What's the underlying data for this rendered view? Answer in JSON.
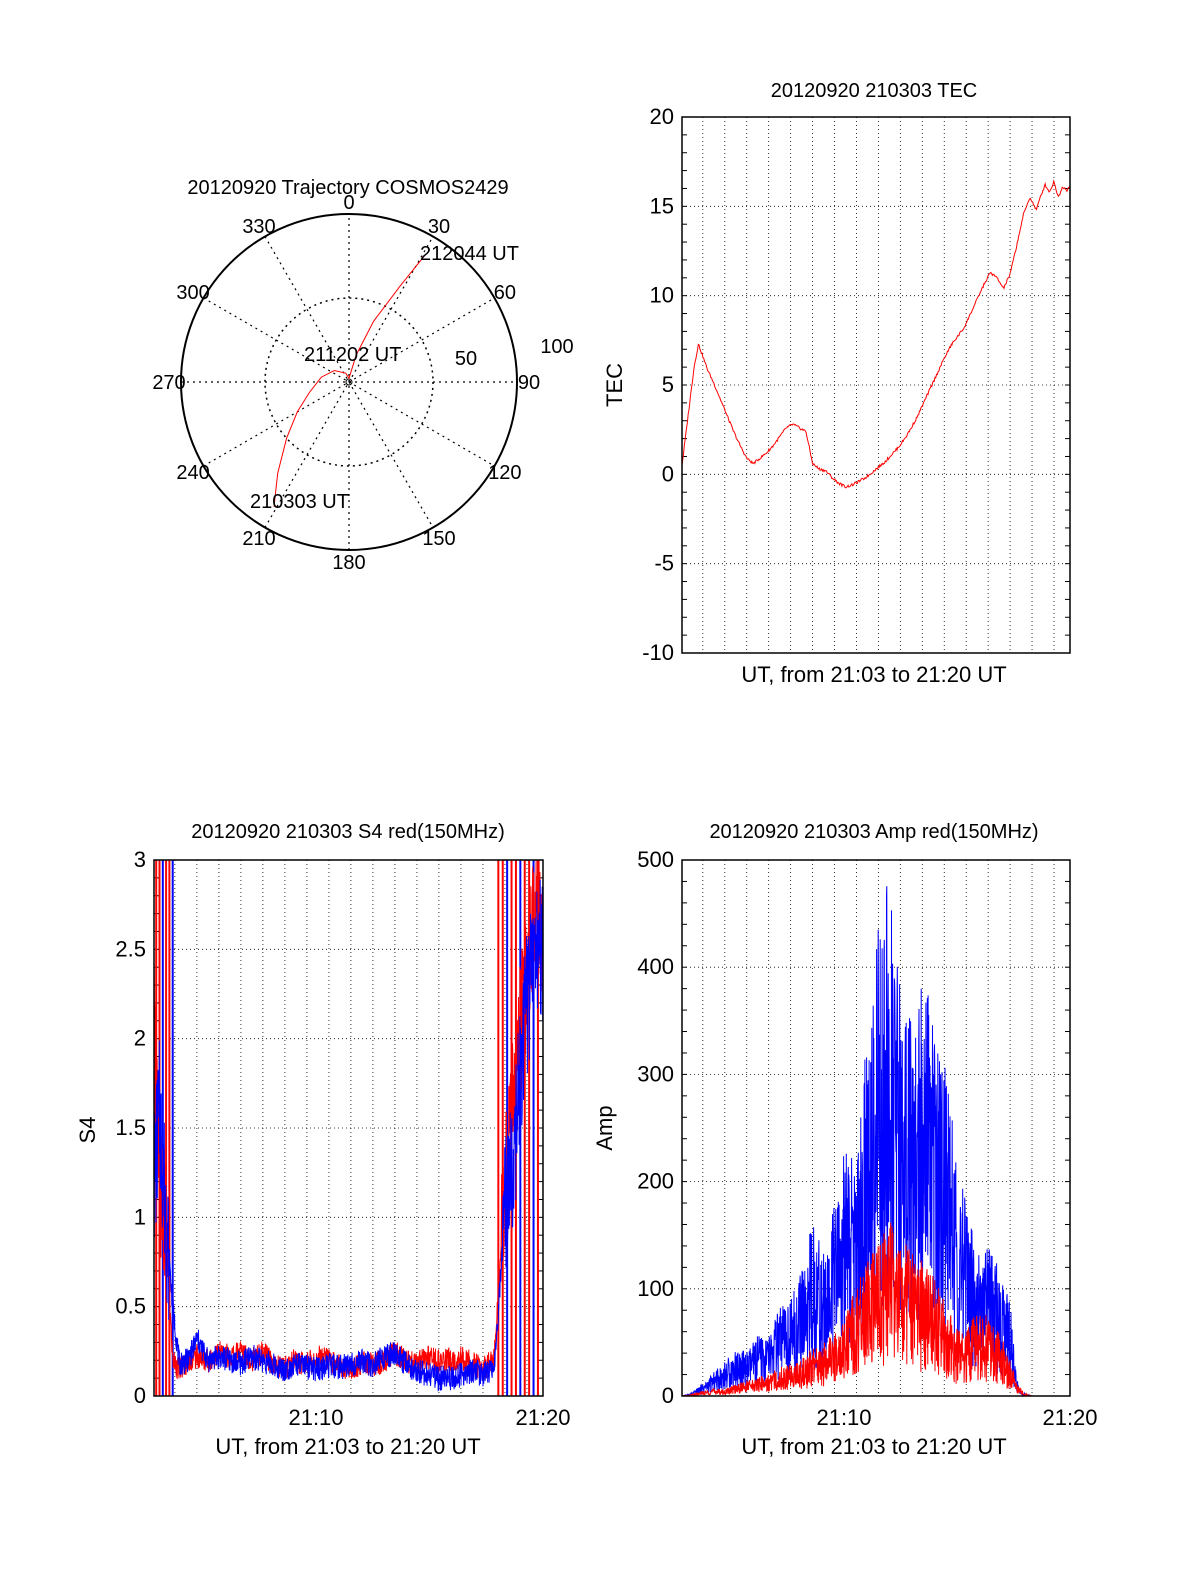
{
  "chart_data": [
    {
      "type": "polar",
      "title": "20120920 Trajectory COSMOS2429",
      "azimuth_labels": [
        "0",
        "30",
        "60",
        "90",
        "120",
        "150",
        "180",
        "210",
        "240",
        "270",
        "300",
        "330"
      ],
      "elevation_labels": [
        "50",
        "100"
      ],
      "trajectory_labels": [
        "212044 UT",
        "211202 UT",
        "210303 UT"
      ],
      "series": [
        {
          "color": "#ff0000",
          "points": [
            [
              211,
              12
            ],
            [
              218,
              28
            ],
            [
              228,
              45
            ],
            [
              240,
              58
            ],
            [
              255,
              68
            ],
            [
              280,
              75
            ],
            [
              308,
              80
            ],
            [
              340,
              85
            ],
            [
              0,
              88
            ],
            [
              15,
              75
            ],
            [
              22,
              55
            ],
            [
              28,
              32
            ],
            [
              31,
              10
            ]
          ]
        }
      ]
    },
    {
      "type": "line",
      "title": "20120920 210303 TEC",
      "xlabel": "UT, from 21:03 to 21:20 UT",
      "ylabel": "TEC",
      "xlim": [
        3.05,
        20.73
      ],
      "ylim": [
        -10,
        20
      ],
      "yticks": [
        "20",
        "15",
        "10",
        "5",
        "0",
        "-5",
        "-10"
      ],
      "grid": true,
      "series": [
        {
          "color": "#ff0000",
          "x": [
            3.05,
            3.2,
            3.4,
            3.6,
            3.8,
            4.0,
            4.2,
            4.5,
            4.8,
            5.1,
            5.4,
            5.7,
            6.0,
            6.3,
            6.6,
            6.9,
            7.2,
            7.5,
            7.8,
            8.1,
            8.4,
            8.7,
            9.0,
            9.3,
            9.6,
            9.9,
            10.2,
            10.5,
            10.8,
            11.1,
            11.4,
            11.7,
            12.0,
            12.3,
            12.6,
            12.9,
            13.2,
            13.5,
            13.8,
            14.1,
            14.4,
            14.7,
            15.0,
            15.3,
            15.6,
            15.9,
            16.2,
            16.5,
            16.8,
            17.1,
            17.4,
            17.7,
            18.0,
            18.3,
            18.6,
            18.9,
            19.2,
            19.4,
            19.6,
            19.8,
            20.0,
            20.2,
            20.4,
            20.6,
            20.73
          ],
          "y": [
            0.5,
            2.0,
            4.0,
            6.0,
            7.3,
            6.6,
            5.9,
            5.1,
            4.2,
            3.3,
            2.4,
            1.6,
            0.9,
            0.6,
            0.9,
            1.2,
            1.6,
            2.1,
            2.6,
            2.8,
            2.6,
            2.4,
            0.6,
            0.3,
            0.2,
            -0.2,
            -0.5,
            -0.7,
            -0.6,
            -0.4,
            -0.2,
            0.1,
            0.4,
            0.7,
            1.1,
            1.5,
            2.0,
            2.6,
            3.3,
            4.1,
            4.9,
            5.7,
            6.5,
            7.2,
            7.7,
            8.2,
            9.0,
            9.8,
            10.6,
            11.3,
            11.0,
            10.4,
            11.2,
            12.8,
            14.5,
            15.5,
            14.8,
            15.6,
            16.2,
            15.8,
            16.4,
            15.5,
            16.1,
            15.9,
            16.2
          ]
        }
      ]
    },
    {
      "type": "line",
      "title": "20120920 210303 S4 red(150MHz)",
      "xlabel": "UT, from 21:03 to 21:20 UT",
      "ylabel": "S4",
      "xlim": [
        3.05,
        20.73
      ],
      "ylim": [
        0,
        3
      ],
      "yticks": [
        "3",
        "2.5",
        "2",
        "1.5",
        "1",
        "0.5",
        "0"
      ],
      "xticks": [
        "21:10",
        "21:20"
      ],
      "grid": true,
      "series": [
        {
          "color": "#ff0000",
          "x": [
            3.05,
            3.3,
            3.6,
            3.9,
            4.2,
            4.6,
            5.0,
            5.5,
            6.0,
            6.5,
            7.0,
            7.5,
            8.0,
            8.5,
            9.0,
            9.5,
            10.0,
            10.5,
            11.0,
            11.5,
            12.0,
            12.5,
            13.0,
            13.5,
            14.0,
            14.5,
            15.0,
            15.5,
            16.0,
            16.5,
            17.0,
            17.5,
            18.0,
            18.5,
            19.0,
            19.5,
            20.0,
            20.5,
            20.73
          ],
          "y": [
            2.1,
            1.2,
            0.9,
            0.2,
            0.15,
            0.2,
            0.22,
            0.2,
            0.24,
            0.22,
            0.25,
            0.2,
            0.24,
            0.18,
            0.16,
            0.2,
            0.18,
            0.22,
            0.2,
            0.17,
            0.15,
            0.19,
            0.17,
            0.2,
            0.24,
            0.2,
            0.18,
            0.22,
            0.19,
            0.2,
            0.22,
            0.18,
            0.15,
            0.2,
            1.1,
            1.8,
            2.4,
            2.8,
            2.6
          ]
        },
        {
          "color": "#0000ff",
          "x": [
            3.05,
            3.3,
            3.6,
            3.9,
            4.2,
            4.6,
            5.0,
            5.5,
            6.0,
            6.5,
            7.0,
            7.5,
            8.0,
            8.5,
            9.0,
            9.5,
            10.0,
            10.5,
            11.0,
            11.5,
            12.0,
            12.5,
            13.0,
            13.5,
            14.0,
            14.5,
            15.0,
            15.5,
            16.0,
            16.5,
            17.0,
            17.5,
            18.0,
            18.5,
            19.0,
            19.5,
            20.0,
            20.5,
            20.73
          ],
          "y": [
            1.2,
            1.6,
            1.0,
            0.5,
            0.18,
            0.2,
            0.32,
            0.2,
            0.22,
            0.2,
            0.18,
            0.22,
            0.2,
            0.17,
            0.15,
            0.18,
            0.16,
            0.15,
            0.17,
            0.16,
            0.18,
            0.2,
            0.17,
            0.22,
            0.24,
            0.18,
            0.14,
            0.12,
            0.1,
            0.1,
            0.12,
            0.14,
            0.12,
            0.14,
            1.0,
            1.5,
            2.2,
            2.6,
            2.4
          ]
        }
      ]
    },
    {
      "type": "line",
      "title": "20120920 210303 Amp red(150MHz)",
      "xlabel": "UT, from 21:03 to 21:20 UT",
      "ylabel": "Amp",
      "xlim": [
        3.05,
        20.73
      ],
      "ylim": [
        0,
        500
      ],
      "yticks": [
        "500",
        "400",
        "300",
        "200",
        "100",
        "0"
      ],
      "xticks": [
        "21:10",
        "21:20"
      ],
      "grid": true,
      "series": [
        {
          "color": "#0000ff",
          "x": [
            3.05,
            3.5,
            4.0,
            4.5,
            5.0,
            5.5,
            6.0,
            6.5,
            7.0,
            7.5,
            8.0,
            8.5,
            9.0,
            9.5,
            10.0,
            10.5,
            11.0,
            11.5,
            12.0,
            12.5,
            13.0,
            13.5,
            14.0,
            14.5,
            15.0,
            15.5,
            16.0,
            16.5,
            17.0,
            17.5,
            18.0,
            18.3,
            18.6,
            19.0,
            20.0,
            20.73
          ],
          "y": [
            0,
            2,
            8,
            15,
            22,
            30,
            28,
            38,
            40,
            55,
            60,
            80,
            110,
            90,
            120,
            160,
            150,
            230,
            300,
            330,
            260,
            250,
            270,
            240,
            210,
            160,
            120,
            90,
            95,
            80,
            60,
            10,
            2,
            0,
            0,
            0
          ]
        },
        {
          "color": "#ff0000",
          "x": [
            3.05,
            3.5,
            4.0,
            4.5,
            5.0,
            5.5,
            6.0,
            6.5,
            7.0,
            7.5,
            8.0,
            8.5,
            9.0,
            9.5,
            10.0,
            10.5,
            11.0,
            11.5,
            12.0,
            12.5,
            13.0,
            13.5,
            14.0,
            14.5,
            15.0,
            15.5,
            16.0,
            16.5,
            17.0,
            17.5,
            18.0,
            18.3,
            18.6,
            19.0,
            20.0,
            20.73
          ],
          "y": [
            0,
            1,
            3,
            5,
            4,
            8,
            10,
            12,
            14,
            18,
            20,
            25,
            30,
            35,
            40,
            50,
            70,
            85,
            95,
            110,
            100,
            90,
            85,
            75,
            60,
            45,
            40,
            55,
            50,
            40,
            25,
            10,
            2,
            0,
            0,
            0
          ]
        }
      ]
    }
  ]
}
